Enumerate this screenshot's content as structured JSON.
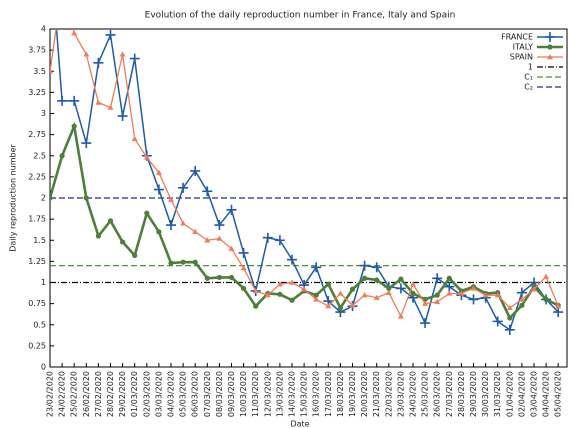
{
  "chart_data": {
    "type": "line",
    "title": "Evolution of the daily reproduction number in France, Italy and Spain",
    "x_label": "Date",
    "y_label": "Daily reproduction number",
    "categories": [
      "23/02/2020",
      "24/02/2020",
      "25/02/2020",
      "26/02/2020",
      "27/02/2020",
      "28/02/2020",
      "29/02/2020",
      "01/03/2020",
      "02/03/2020",
      "03/03/2020",
      "04/03/2020",
      "05/03/2020",
      "06/03/2020",
      "07/03/2020",
      "08/03/2020",
      "09/03/2020",
      "10/03/2020",
      "11/03/2020",
      "12/03/2020",
      "13/03/2020",
      "14/03/2020",
      "15/03/2020",
      "16/03/2020",
      "17/03/2020",
      "18/03/2020",
      "19/03/2020",
      "20/03/2020",
      "21/03/2020",
      "22/03/2020",
      "23/03/2020",
      "24/03/2020",
      "25/03/2020",
      "26/03/2020",
      "27/03/2020",
      "28/03/2020",
      "29/03/2020",
      "30/03/2020",
      "31/03/2020",
      "01/04/2020",
      "02/04/2020",
      "03/04/2020",
      "04/04/2020",
      "05/04/2020"
    ],
    "series": [
      {
        "name": "FRANCE",
        "color": "#1f5aa6",
        "marker": "plus",
        "values": [
          5,
          3.15,
          3.15,
          2.65,
          3.6,
          3.93,
          2.97,
          3.65,
          2.5,
          2.1,
          1.68,
          2.12,
          2.32,
          2.08,
          1.68,
          1.86,
          1.35,
          0.9,
          1.53,
          1.5,
          1.27,
          0.97,
          1.18,
          0.78,
          0.65,
          0.72,
          1.2,
          1.18,
          0.95,
          0.93,
          0.82,
          0.52,
          1.05,
          0.95,
          0.85,
          0.8,
          0.82,
          0.54,
          0.44,
          0.88,
          1.0,
          0.8,
          0.65
        ]
      },
      {
        "name": "ITALY",
        "color": "#4e7f3a",
        "marker": "circle",
        "values": [
          2.0,
          2.5,
          2.85,
          2.0,
          1.55,
          1.73,
          1.48,
          1.32,
          1.82,
          1.6,
          1.23,
          1.24,
          1.24,
          1.05,
          1.06,
          1.06,
          0.93,
          0.72,
          0.87,
          0.86,
          0.79,
          0.9,
          0.85,
          0.98,
          0.7,
          0.92,
          1.05,
          1.03,
          0.93,
          1.04,
          0.87,
          0.8,
          0.85,
          1.05,
          0.9,
          0.95,
          0.87,
          0.88,
          0.58,
          0.73,
          0.95,
          0.8,
          0.73
        ]
      },
      {
        "name": "SPAIN",
        "color": "#f07c5a",
        "marker": "triangle",
        "values": [
          3.5,
          4.5,
          3.95,
          3.7,
          3.13,
          3.07,
          3.7,
          2.7,
          2.48,
          2.3,
          1.98,
          1.7,
          1.6,
          1.5,
          1.52,
          1.4,
          1.17,
          0.9,
          0.85,
          0.98,
          1.0,
          0.92,
          0.8,
          0.72,
          0.87,
          0.73,
          0.85,
          0.82,
          0.88,
          0.6,
          0.98,
          0.75,
          0.77,
          0.87,
          0.87,
          0.93,
          0.85,
          0.85,
          0.7,
          0.8,
          0.92,
          1.07,
          0.72
        ]
      }
    ],
    "reference_lines": [
      {
        "name": "1",
        "value": 1,
        "color": "#000000"
      },
      {
        "name": "C₁",
        "value": 1.2,
        "color": "#4e8f3a"
      },
      {
        "name": "C₂",
        "value": 2,
        "color": "#2a2a80"
      }
    ],
    "ylim": [
      0,
      4
    ],
    "yticks": [
      0,
      0.25,
      0.5,
      0.75,
      1,
      1.25,
      1.5,
      1.75,
      2,
      2.25,
      2.5,
      2.75,
      3,
      3.25,
      3.5,
      3.75,
      4
    ],
    "legend": "upper right"
  }
}
